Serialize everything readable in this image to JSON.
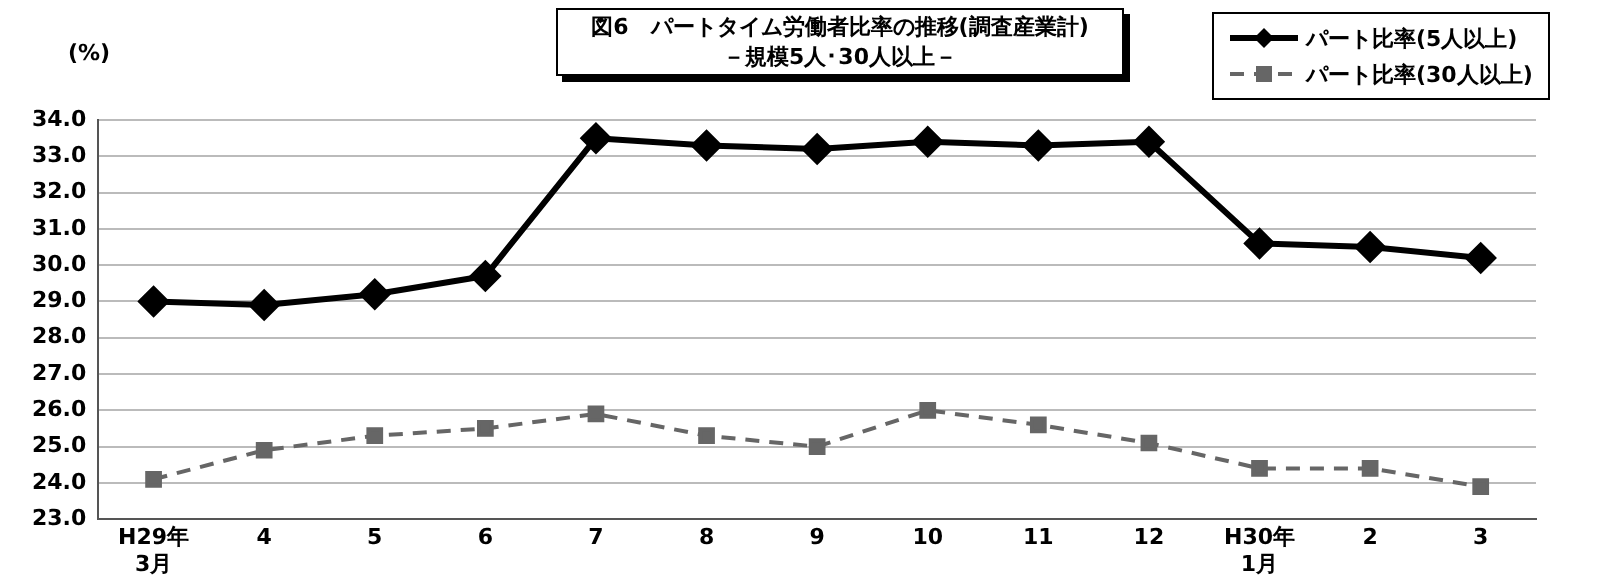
{
  "chart_data": {
    "type": "line",
    "title": "図6　パートタイム労働者比率の推移(調査産業計)\n－規模5人･30人以上－",
    "ylabel": "(%)",
    "categories": [
      "H29年\n3月",
      "4",
      "5",
      "6",
      "7",
      "8",
      "9",
      "10",
      "11",
      "12",
      "H30年\n1月",
      "2",
      "3"
    ],
    "series": [
      {
        "name": "パート比率(5人以上)",
        "color": "#000000",
        "marker": "diamond",
        "line_style": "solid",
        "values": [
          29.0,
          28.9,
          29.2,
          29.7,
          33.5,
          33.3,
          33.2,
          33.4,
          33.3,
          33.4,
          30.6,
          30.5,
          30.2
        ]
      },
      {
        "name": "パート比率(30人以上)",
        "color": "#666666",
        "marker": "square",
        "line_style": "dashed",
        "values": [
          24.1,
          24.9,
          25.3,
          25.5,
          25.9,
          25.3,
          25.0,
          26.0,
          25.6,
          25.1,
          24.4,
          24.4,
          23.9
        ]
      }
    ],
    "ylim": [
      23,
      34
    ],
    "yticks": [
      {
        "value": 23,
        "label": "23.0"
      },
      {
        "value": 24,
        "label": "24.0"
      },
      {
        "value": 25,
        "label": "25.0"
      },
      {
        "value": 26,
        "label": "26.0"
      },
      {
        "value": 27,
        "label": "27.0"
      },
      {
        "value": 28,
        "label": "28.0"
      },
      {
        "value": 29,
        "label": "29.0"
      },
      {
        "value": 30,
        "label": "30.0"
      },
      {
        "value": 31,
        "label": "31.0"
      },
      {
        "value": 32,
        "label": "32.0"
      },
      {
        "value": 33,
        "label": "33.0"
      },
      {
        "value": 34,
        "label": "34.0"
      }
    ],
    "grid": "y",
    "legend": "top right"
  }
}
